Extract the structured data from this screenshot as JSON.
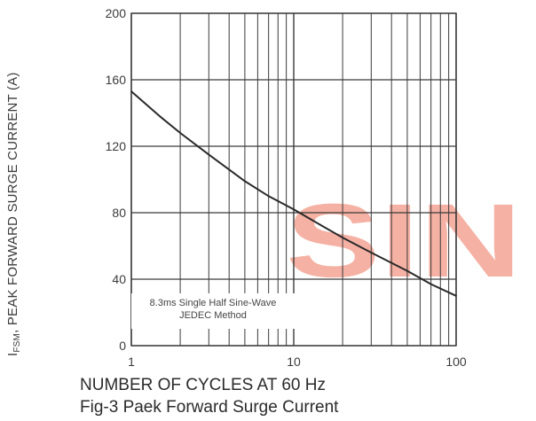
{
  "chart_data": {
    "type": "line",
    "title": "",
    "xlabel": "NUMBER OF CYCLES AT 60 Hz",
    "ylabel": {
      "prefix": "I",
      "subscript": "FSM",
      "text": ", PEAK FORWARD SURGE CURRENT (A)"
    },
    "caption": "Fig-3 Paek Forward Surge Current",
    "x_scale": "log",
    "xlim": [
      1,
      100
    ],
    "ylim": [
      0,
      200
    ],
    "x_ticks": [
      "1",
      "10",
      "100"
    ],
    "x_tick_values": [
      1,
      10,
      100
    ],
    "y_ticks": [
      "0",
      "40",
      "80",
      "120",
      "160",
      "200"
    ],
    "y_tick_values": [
      0,
      40,
      80,
      120,
      160,
      200
    ],
    "grid": true,
    "annotation": [
      "8.3ms Single Half Sine-Wave",
      "JEDEC Method"
    ],
    "series": [
      {
        "x": [
          1,
          1.5,
          2,
          3,
          5,
          7,
          10,
          15,
          20,
          30,
          50,
          70,
          100
        ],
        "y": [
          153,
          138,
          128,
          115,
          99,
          90,
          82,
          72,
          65,
          56,
          45,
          37,
          30
        ]
      }
    ]
  },
  "watermark": {
    "text": "SIN",
    "color": "#f4a493"
  },
  "colors": {
    "line": "#2a2a2a",
    "grid": "#3a3a3a",
    "text": "#3b3b3b"
  }
}
